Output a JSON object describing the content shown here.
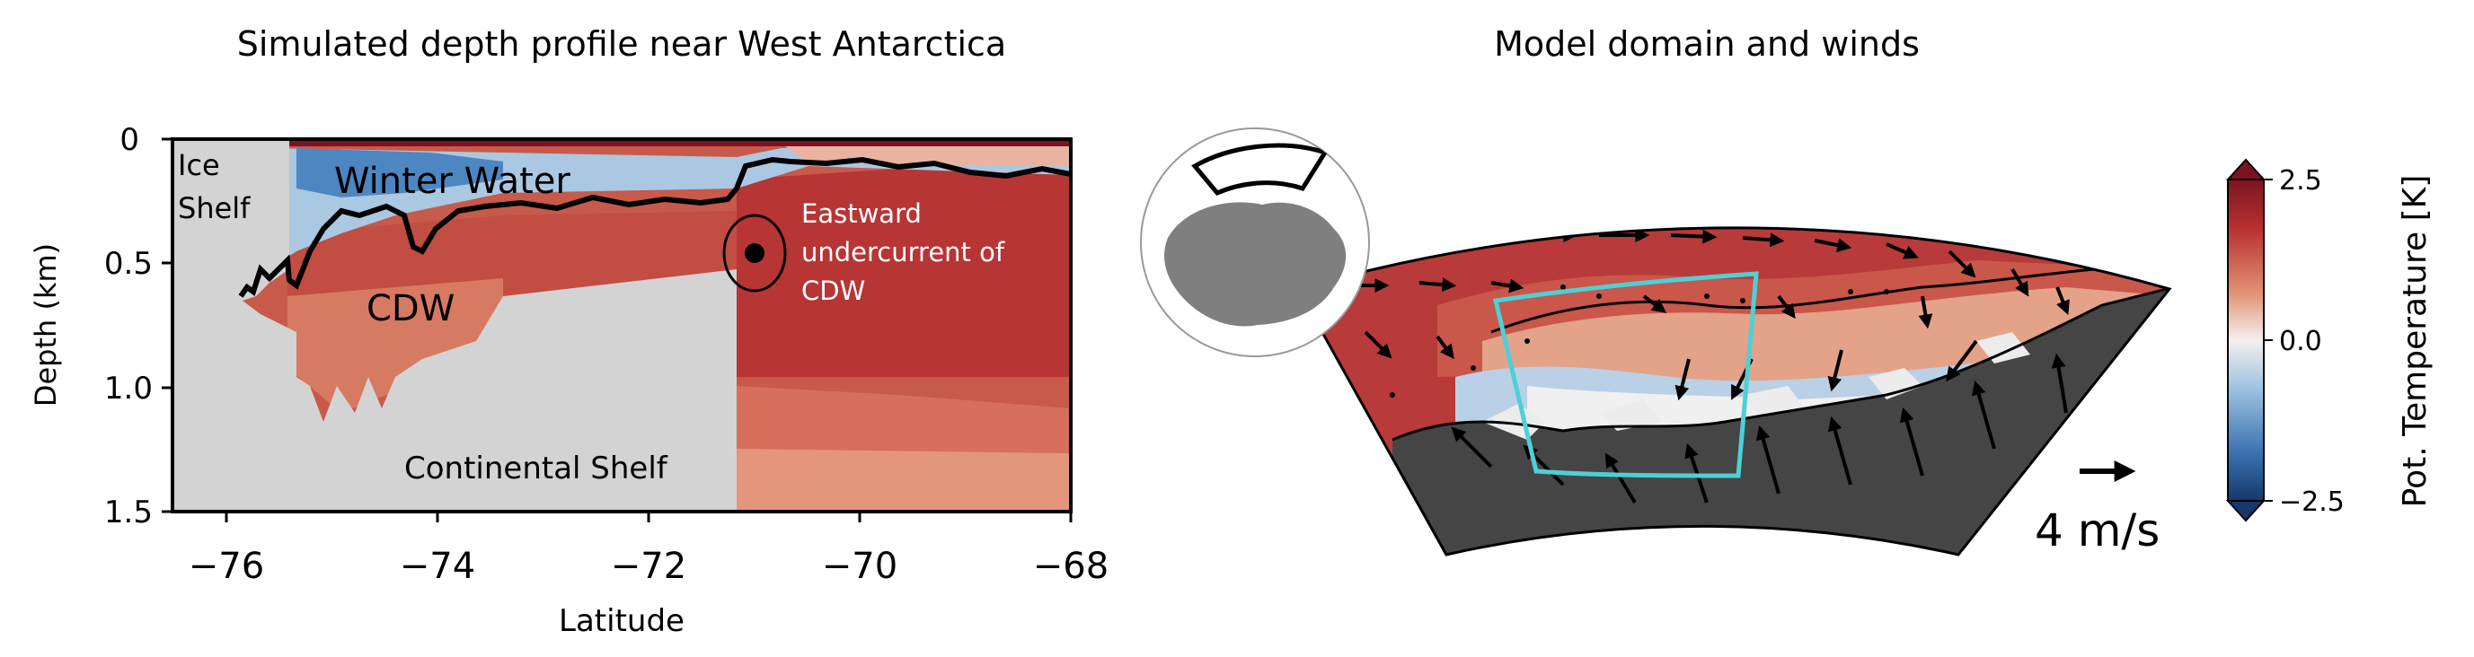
{
  "left_panel": {
    "title": "Simulated depth profile near West Antarctica",
    "xlabel": "Latitude",
    "ylabel": "Depth (km)",
    "x_ticks": [
      "−76",
      "−74",
      "−72",
      "−70",
      "−68"
    ],
    "y_ticks": [
      "0",
      "0.5",
      "1.0",
      "1.5"
    ],
    "labels": {
      "ice_shelf_line1": "Ice",
      "ice_shelf_line2": "Shelf",
      "winter_water": "Winter Water",
      "cdw": "CDW",
      "continental_shelf": "Continental Shelf",
      "undercurrent_line1": "Eastward",
      "undercurrent_line2": "undercurrent of",
      "undercurrent_line3": "CDW"
    }
  },
  "right_panel": {
    "title": "Model domain and winds",
    "wind_scale_label": "4 m/s",
    "colorbar": {
      "label": "Pot. Temperature [K]",
      "ticks": [
        "2.5",
        "0.0",
        "−2.5"
      ]
    }
  },
  "colors": {
    "warm_dark": "#b83a3a",
    "warm_mid": "#c9574a",
    "warm_light": "#e0937a",
    "cold_blue": "#3d78b8",
    "land_gray": "#d3d3d3",
    "dark_land": "#444444",
    "domain_box": "#4dd0d6"
  }
}
